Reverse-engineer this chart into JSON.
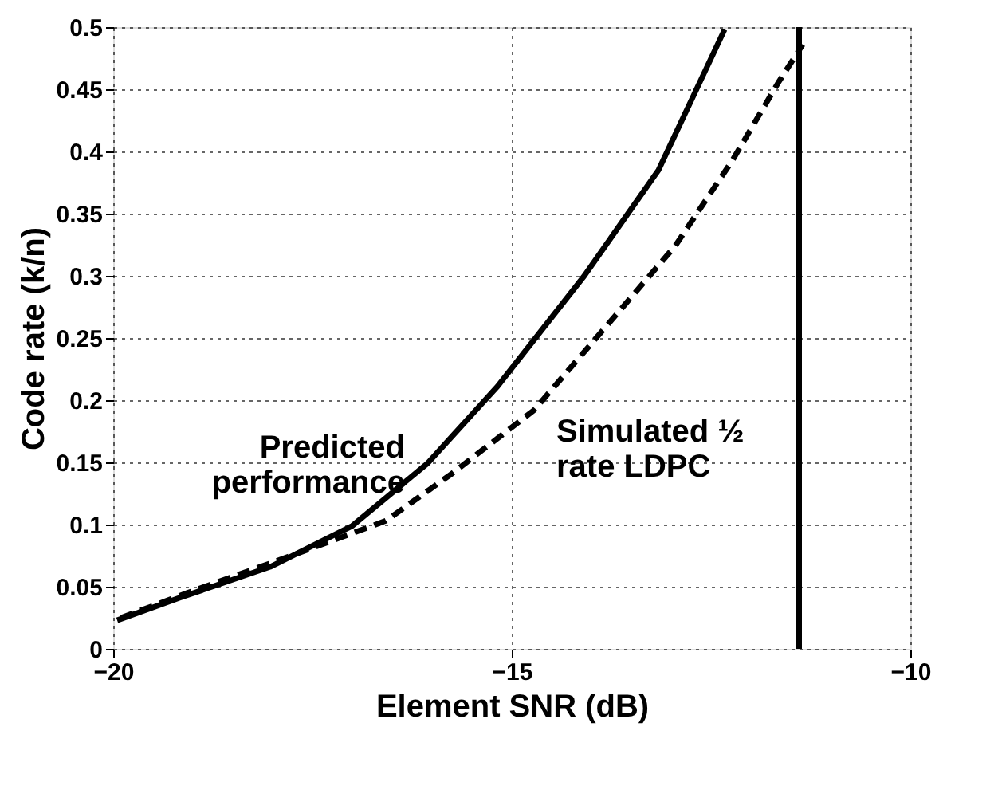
{
  "chart_data": {
    "type": "line",
    "xlabel": "Element SNR (dB)",
    "ylabel": "Code rate (k/n)",
    "xlim": [
      -20,
      -10
    ],
    "xticks": [
      -20,
      -15,
      -10
    ],
    "ylim": [
      0,
      0.5
    ],
    "yticks": [
      0,
      0.05,
      0.1,
      0.15,
      0.2,
      0.25,
      0.3,
      0.35,
      0.4,
      0.45,
      0.5
    ],
    "grid": true,
    "series": [
      {
        "name": "Predicted performance",
        "color": "#000000",
        "line_style": "solid",
        "x": [
          -19.95,
          -19.17,
          -18.03,
          -17.0,
          -16.06,
          -15.18,
          -14.09,
          -13.16,
          -12.33
        ],
        "values": [
          0.023,
          0.041,
          0.066,
          0.099,
          0.149,
          0.211,
          0.3,
          0.385,
          0.498
        ]
      },
      {
        "name": "Simulated ½ rate LDPC",
        "color": "#000000",
        "line_style": "dashed",
        "x": [
          -19.9,
          -19.07,
          -17.72,
          -16.58,
          -15.75,
          -14.72,
          -13.78,
          -12.95,
          -12.23,
          -11.66,
          -11.35
        ],
        "values": [
          0.025,
          0.045,
          0.076,
          0.103,
          0.141,
          0.192,
          0.262,
          0.324,
          0.393,
          0.455,
          0.486
        ]
      }
    ],
    "ref_lines": [
      {
        "axis": "x",
        "value": -11.4,
        "color": "#000000",
        "line_style": "solid"
      }
    ]
  }
}
